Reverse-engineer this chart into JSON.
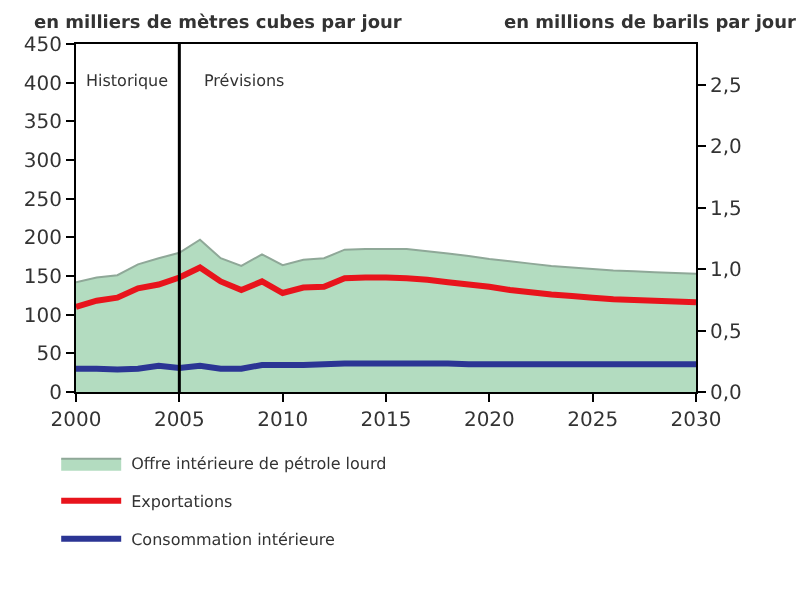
{
  "chart_data": {
    "type": "area",
    "ylabel": "en milliers de mètres cubes par jour",
    "y2label": "en millions de barils par jour",
    "x": [
      2000,
      2001,
      2002,
      2003,
      2004,
      2005,
      2006,
      2007,
      2008,
      2009,
      2010,
      2011,
      2012,
      2013,
      2014,
      2015,
      2016,
      2017,
      2018,
      2019,
      2020,
      2021,
      2022,
      2023,
      2024,
      2025,
      2026,
      2027,
      2028,
      2029,
      2030
    ],
    "series": [
      {
        "name": "Offre intérieure de pétrole lourd",
        "color": "#b3dcc0",
        "values": [
          142,
          148,
          151,
          165,
          173,
          180,
          197,
          173,
          163,
          178,
          164,
          171,
          173,
          184,
          185,
          185,
          185,
          182,
          179,
          176,
          172,
          169,
          166,
          163,
          161,
          159,
          157,
          156,
          155,
          154,
          153
        ]
      },
      {
        "name": "Exportations",
        "type": "line",
        "color": "#e8141c",
        "values": [
          110,
          118,
          122,
          134,
          139,
          148,
          161,
          143,
          132,
          143,
          128,
          135,
          136,
          147,
          148,
          148,
          147,
          145,
          142,
          139,
          136,
          132,
          129,
          126,
          124,
          122,
          120,
          119,
          118,
          117,
          116
        ]
      },
      {
        "name": "Consommation intérieure",
        "type": "line",
        "color": "#2b3594",
        "values": [
          30,
          30,
          29,
          30,
          34,
          31,
          34,
          30,
          30,
          35,
          35,
          35,
          36,
          37,
          37,
          37,
          37,
          37,
          37,
          36,
          36,
          36,
          36,
          36,
          36,
          36,
          36,
          36,
          36,
          36,
          36
        ]
      }
    ],
    "xlim": [
      2000,
      2030
    ],
    "xticks": [
      2000,
      2005,
      2010,
      2015,
      2020,
      2025,
      2030
    ],
    "ylim": [
      0,
      450
    ],
    "yticks": [
      0,
      50,
      100,
      150,
      200,
      250,
      300,
      350,
      400,
      450
    ],
    "y2lim": [
      0,
      2.83
    ],
    "y2ticks": [
      {
        "value": 0,
        "label": "0,0"
      },
      {
        "value": 0.5,
        "label": "0,5"
      },
      {
        "value": 1.0,
        "label": "1,0"
      },
      {
        "value": 1.5,
        "label": "1,5"
      },
      {
        "value": 2.0,
        "label": "2,0"
      },
      {
        "value": 2.5,
        "label": "2,5"
      }
    ],
    "ref_lines": [
      {
        "axis": "x",
        "value": 2005,
        "color": "#000000"
      }
    ],
    "annotations": [
      "Historique",
      "Prévisions"
    ],
    "legend": "bottom",
    "marker": "none",
    "line_style": "solid"
  }
}
